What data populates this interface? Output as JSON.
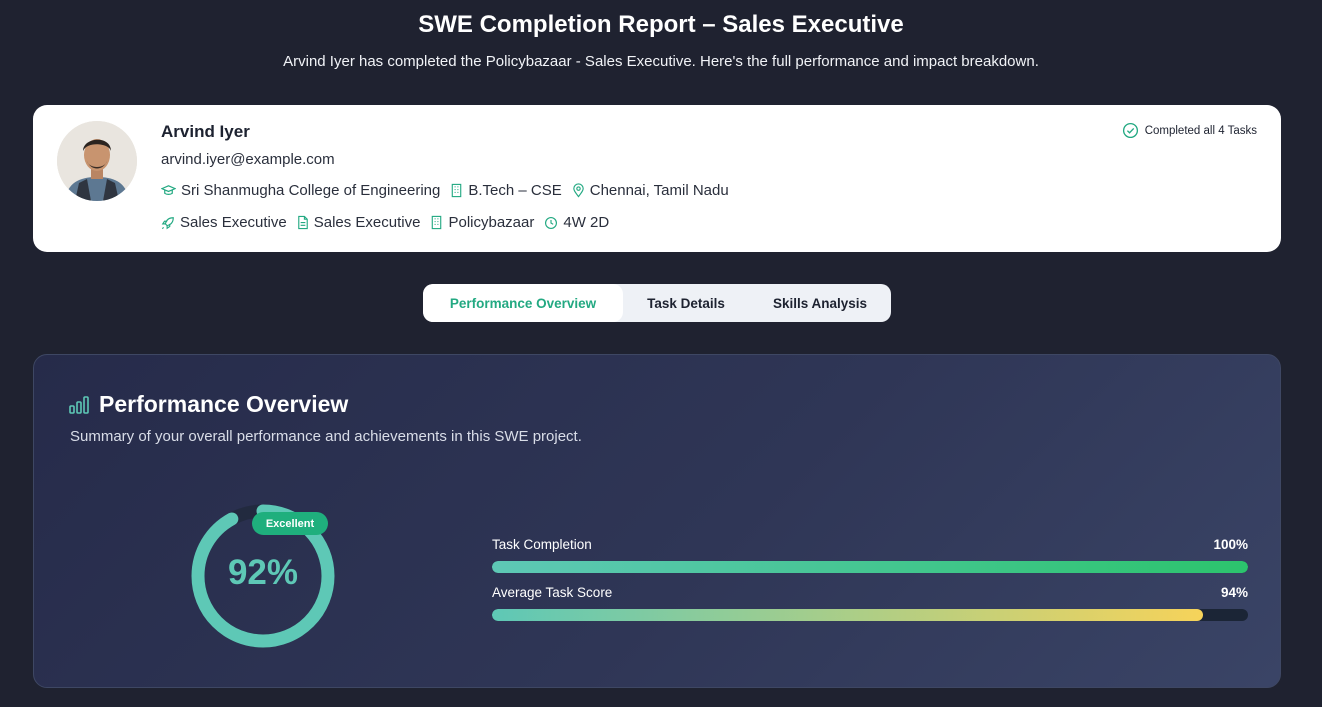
{
  "header": {
    "title": "SWE Completion Report – Sales Executive",
    "subtitle": "Arvind Iyer has completed the Policybazaar - Sales Executive. Here's the full performance and impact breakdown."
  },
  "profile": {
    "name": "Arvind Iyer",
    "email": "arvind.iyer@example.com",
    "college": "Sri Shanmugha College of Engineering",
    "degree": "B.Tech – CSE",
    "location": "Chennai, Tamil Nadu",
    "role": "Sales Executive",
    "project": "Sales Executive",
    "company": "Policybazaar",
    "duration": "4W 2D",
    "completed_label": "Completed all 4 Tasks"
  },
  "tabs": [
    {
      "label": "Performance Overview",
      "active": true
    },
    {
      "label": "Task Details",
      "active": false
    },
    {
      "label": "Skills Analysis",
      "active": false
    }
  ],
  "performance": {
    "heading": "Performance Overview",
    "description": "Summary of your overall performance and achievements in this SWE project.",
    "score_label": "92%",
    "score": 92,
    "rating": "Excellent",
    "metrics": [
      {
        "label": "Task Completion",
        "value_label": "100%",
        "value": 100
      },
      {
        "label": "Average Task Score",
        "value_label": "94%",
        "value": 94
      }
    ]
  },
  "colors": {
    "accent": "#23a982",
    "gauge": "#5ec8b6",
    "background": "#1f2230"
  }
}
